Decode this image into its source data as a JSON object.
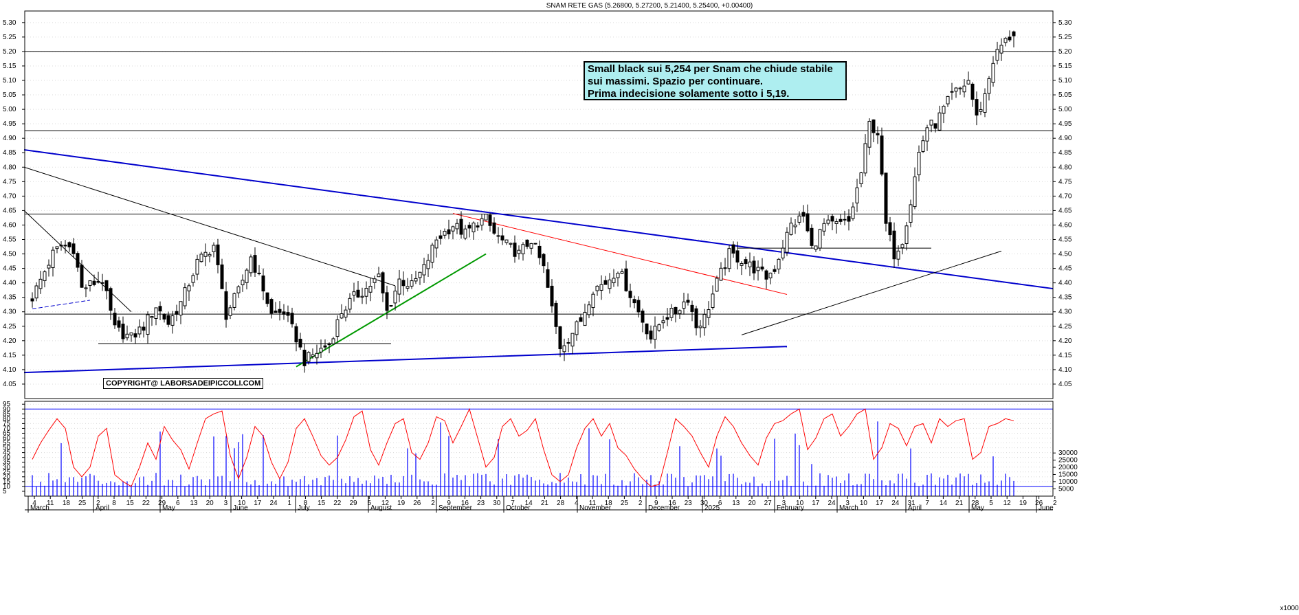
{
  "chart_data": [
    {
      "type": "candlestick",
      "title": "SNAM RETE GAS (5.26800, 5.27200, 5.21400, 5.25400, +0.00400)",
      "ylim": [
        4.0,
        5.34
      ],
      "y_ticks": [
        "4.05",
        "4.10",
        "4.15",
        "4.20",
        "4.25",
        "4.30",
        "4.35",
        "4.40",
        "4.45",
        "4.50",
        "4.55",
        "4.60",
        "4.65",
        "4.70",
        "4.75",
        "4.80",
        "4.85",
        "4.90",
        "4.95",
        "5.00",
        "5.05",
        "5.10",
        "5.15",
        "5.20",
        "5.25",
        "5.30"
      ],
      "last": {
        "open": 5.268,
        "high": 5.272,
        "low": 5.214,
        "close": 5.254,
        "change": 0.004
      },
      "close_anchors": [
        [
          0,
          4.35
        ],
        [
          5,
          4.5
        ],
        [
          7,
          4.53
        ],
        [
          10,
          4.52
        ],
        [
          12,
          4.38
        ],
        [
          15,
          4.4
        ],
        [
          17,
          4.41
        ],
        [
          20,
          4.24
        ],
        [
          24,
          4.21
        ],
        [
          27,
          4.25
        ],
        [
          30,
          4.32
        ],
        [
          33,
          4.26
        ],
        [
          36,
          4.33
        ],
        [
          40,
          4.47
        ],
        [
          44,
          4.53
        ],
        [
          47,
          4.29
        ],
        [
          50,
          4.37
        ],
        [
          53,
          4.49
        ],
        [
          56,
          4.38
        ],
        [
          58,
          4.29
        ],
        [
          61,
          4.3
        ],
        [
          64,
          4.21
        ],
        [
          66,
          4.13
        ],
        [
          69,
          4.16
        ],
        [
          72,
          4.19
        ],
        [
          75,
          4.3
        ],
        [
          78,
          4.35
        ],
        [
          81,
          4.38
        ],
        [
          84,
          4.42
        ],
        [
          86,
          4.3
        ],
        [
          89,
          4.41
        ],
        [
          92,
          4.39
        ],
        [
          95,
          4.45
        ],
        [
          98,
          4.55
        ],
        [
          102,
          4.6
        ],
        [
          105,
          4.57
        ],
        [
          108,
          4.61
        ],
        [
          110,
          4.62
        ],
        [
          112,
          4.57
        ],
        [
          115,
          4.53
        ],
        [
          118,
          4.5
        ],
        [
          121,
          4.55
        ],
        [
          124,
          4.45
        ],
        [
          126,
          4.31
        ],
        [
          128,
          4.18
        ],
        [
          130,
          4.21
        ],
        [
          133,
          4.27
        ],
        [
          136,
          4.38
        ],
        [
          139,
          4.4
        ],
        [
          142,
          4.45
        ],
        [
          145,
          4.36
        ],
        [
          148,
          4.27
        ],
        [
          150,
          4.21
        ],
        [
          153,
          4.28
        ],
        [
          156,
          4.3
        ],
        [
          159,
          4.35
        ],
        [
          161,
          4.25
        ],
        [
          163,
          4.28
        ],
        [
          166,
          4.4
        ],
        [
          169,
          4.5
        ],
        [
          172,
          4.48
        ],
        [
          175,
          4.45
        ],
        [
          178,
          4.42
        ],
        [
          180,
          4.45
        ],
        [
          182,
          4.53
        ],
        [
          184,
          4.6
        ],
        [
          187,
          4.63
        ],
        [
          189,
          4.52
        ],
        [
          192,
          4.6
        ],
        [
          195,
          4.6
        ],
        [
          198,
          4.61
        ],
        [
          201,
          4.78
        ],
        [
          203,
          4.95
        ],
        [
          205,
          4.92
        ],
        [
          207,
          4.6
        ],
        [
          209,
          4.5
        ],
        [
          211,
          4.55
        ],
        [
          213,
          4.68
        ],
        [
          215,
          4.85
        ],
        [
          217,
          4.94
        ],
        [
          219,
          4.95
        ],
        [
          221,
          5.0
        ],
        [
          223,
          5.05
        ],
        [
          225,
          5.07
        ],
        [
          227,
          5.1
        ],
        [
          229,
          4.97
        ],
        [
          231,
          5.05
        ],
        [
          233,
          5.17
        ],
        [
          235,
          5.22
        ],
        [
          237,
          5.25
        ],
        [
          238,
          5.254
        ]
      ],
      "horizontal_levels": [
        5.2,
        4.926,
        4.638,
        4.292
      ],
      "volume_axis_ticks": [
        "5000",
        "10000",
        "15000",
        "20000",
        "25000",
        "30000"
      ]
    },
    {
      "type": "line+bar",
      "ylim": [
        0,
        98
      ],
      "y_ticks": [
        "5",
        "10",
        "15",
        "20",
        "25",
        "30",
        "35",
        "40",
        "45",
        "50",
        "55",
        "60",
        "65",
        "70",
        "75",
        "80",
        "85",
        "90",
        "95"
      ],
      "levels": [
        90,
        10
      ],
      "oscillator_anchors": [
        [
          0,
          38
        ],
        [
          2,
          55
        ],
        [
          4,
          68
        ],
        [
          6,
          80
        ],
        [
          8,
          70
        ],
        [
          10,
          30
        ],
        [
          12,
          20
        ],
        [
          14,
          30
        ],
        [
          16,
          62
        ],
        [
          18,
          70
        ],
        [
          20,
          22
        ],
        [
          22,
          15
        ],
        [
          24,
          10
        ],
        [
          26,
          30
        ],
        [
          28,
          55
        ],
        [
          30,
          38
        ],
        [
          32,
          72
        ],
        [
          34,
          58
        ],
        [
          36,
          48
        ],
        [
          38,
          28
        ],
        [
          40,
          55
        ],
        [
          42,
          80
        ],
        [
          44,
          85
        ],
        [
          46,
          88
        ],
        [
          48,
          42
        ],
        [
          50,
          18
        ],
        [
          52,
          40
        ],
        [
          54,
          72
        ],
        [
          56,
          62
        ],
        [
          58,
          35
        ],
        [
          60,
          18
        ],
        [
          62,
          35
        ],
        [
          64,
          70
        ],
        [
          66,
          80
        ],
        [
          68,
          62
        ],
        [
          70,
          42
        ],
        [
          72,
          32
        ],
        [
          74,
          40
        ],
        [
          76,
          58
        ],
        [
          78,
          82
        ],
        [
          80,
          88
        ],
        [
          82,
          48
        ],
        [
          84,
          32
        ],
        [
          86,
          55
        ],
        [
          88,
          75
        ],
        [
          90,
          80
        ],
        [
          92,
          45
        ],
        [
          94,
          38
        ],
        [
          96,
          55
        ],
        [
          98,
          82
        ],
        [
          100,
          78
        ],
        [
          102,
          55
        ],
        [
          104,
          72
        ],
        [
          106,
          90
        ],
        [
          108,
          60
        ],
        [
          110,
          30
        ],
        [
          112,
          40
        ],
        [
          114,
          72
        ],
        [
          116,
          80
        ],
        [
          118,
          62
        ],
        [
          120,
          68
        ],
        [
          122,
          80
        ],
        [
          124,
          48
        ],
        [
          126,
          22
        ],
        [
          128,
          15
        ],
        [
          130,
          22
        ],
        [
          132,
          50
        ],
        [
          134,
          70
        ],
        [
          136,
          80
        ],
        [
          138,
          62
        ],
        [
          140,
          75
        ],
        [
          142,
          50
        ],
        [
          144,
          42
        ],
        [
          146,
          28
        ],
        [
          148,
          18
        ],
        [
          150,
          10
        ],
        [
          152,
          12
        ],
        [
          154,
          45
        ],
        [
          156,
          80
        ],
        [
          158,
          72
        ],
        [
          160,
          62
        ],
        [
          162,
          45
        ],
        [
          164,
          30
        ],
        [
          166,
          62
        ],
        [
          168,
          82
        ],
        [
          170,
          72
        ],
        [
          172,
          55
        ],
        [
          174,
          42
        ],
        [
          176,
          32
        ],
        [
          178,
          60
        ],
        [
          180,
          75
        ],
        [
          182,
          78
        ],
        [
          184,
          85
        ],
        [
          186,
          90
        ],
        [
          188,
          48
        ],
        [
          190,
          60
        ],
        [
          192,
          80
        ],
        [
          194,
          85
        ],
        [
          196,
          62
        ],
        [
          198,
          72
        ],
        [
          200,
          85
        ],
        [
          202,
          90
        ],
        [
          204,
          38
        ],
        [
          206,
          50
        ],
        [
          208,
          75
        ],
        [
          210,
          70
        ],
        [
          212,
          52
        ],
        [
          214,
          72
        ],
        [
          216,
          75
        ],
        [
          218,
          55
        ],
        [
          220,
          80
        ],
        [
          222,
          72
        ],
        [
          224,
          78
        ],
        [
          226,
          80
        ],
        [
          228,
          38
        ],
        [
          230,
          45
        ],
        [
          232,
          72
        ],
        [
          234,
          75
        ],
        [
          236,
          80
        ],
        [
          238,
          78
        ]
      ]
    }
  ],
  "timeline": {
    "first_candle_x": 47,
    "candle_spacing": 6.0,
    "day_ticks": [
      "4",
      "11",
      "18",
      "25",
      "2",
      "8",
      "15",
      "22",
      "29",
      "6",
      "13",
      "20",
      "3",
      "10",
      "17",
      "24",
      "1",
      "8",
      "15",
      "22",
      "29",
      "5",
      "12",
      "19",
      "26",
      "2",
      "9",
      "16",
      "23",
      "30",
      "7",
      "14",
      "21",
      "28",
      "4",
      "11",
      "18",
      "25",
      "2",
      "9",
      "16",
      "23",
      "30",
      "6",
      "13",
      "20",
      "27",
      "3",
      "10",
      "17",
      "24",
      "3",
      "10",
      "17",
      "24",
      "31",
      "7",
      "14",
      "21",
      "28",
      "5",
      "12",
      "19",
      "26",
      "2"
    ],
    "months": [
      "March",
      "April",
      "May",
      "June",
      "July",
      "August",
      "September",
      "October",
      "November",
      "December",
      "2025",
      "February",
      "March",
      "April",
      "May",
      "June"
    ]
  },
  "annotation": {
    "lines": [
      "Small black sui 5,254 per Snam che chiude stabile",
      "sui massimi. Spazio per continuare.",
      "Prima indecisione solamente sotto i 5,19."
    ]
  },
  "copyright": "COPYRIGHT@ LABORSADEIPICCOLI.COM",
  "volume_unit": "x1000",
  "colors": {
    "candles": "#000000",
    "resistance_trendline": "#0000cc",
    "support_trendline": "#0000cc",
    "uptrend_line": "#009900",
    "downtrend_line_red": "#ff0000",
    "oscillator": "#ff0000",
    "volume_bars": "#0000ff",
    "levels": "#000000"
  }
}
